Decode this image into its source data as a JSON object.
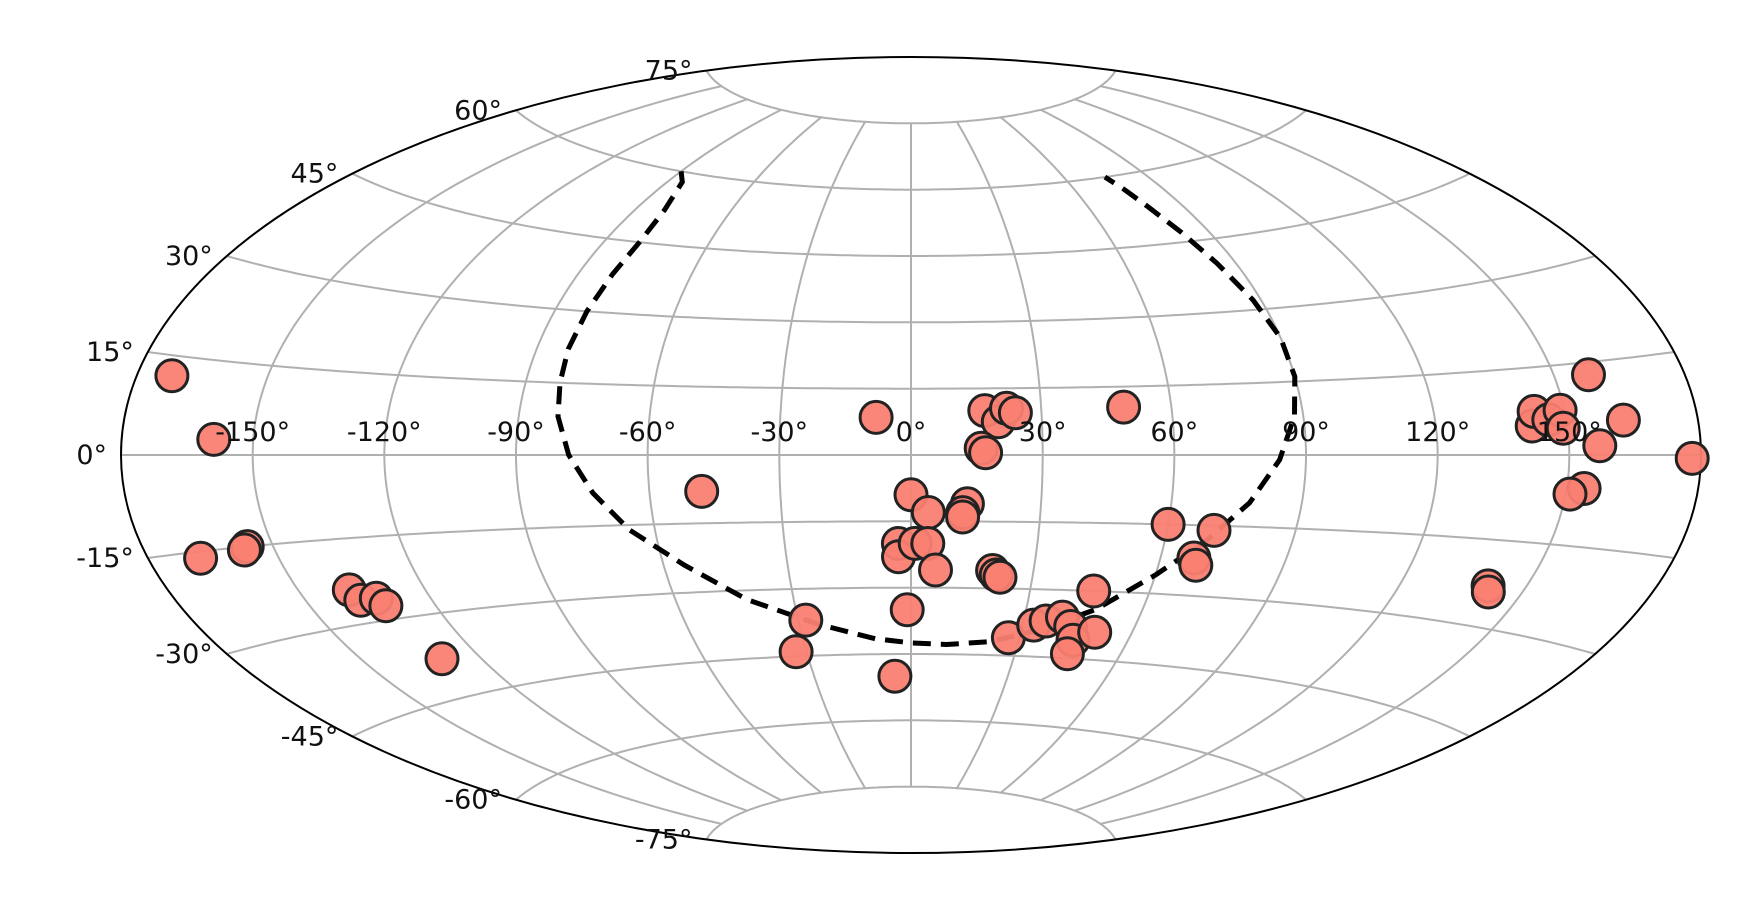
{
  "chart_data": {
    "type": "scatter",
    "projection": "aitoff-like",
    "title": "",
    "xlabel": "",
    "ylabel": "",
    "xlim": [
      -180,
      180
    ],
    "ylim": [
      -90,
      90
    ],
    "grid": true,
    "x_ticks": [
      -150,
      -120,
      -90,
      -60,
      -30,
      0,
      30,
      60,
      90,
      120,
      150
    ],
    "x_tick_labels": [
      "-150°",
      "-120°",
      "-90°",
      "-60°",
      "-30°",
      "0°",
      "30°",
      "60°",
      "90°",
      "120°",
      "150°"
    ],
    "y_ticks": [
      75,
      60,
      45,
      30,
      15,
      0,
      -15,
      -30,
      -45,
      -60,
      -75
    ],
    "y_tick_labels": [
      "75°",
      "60°",
      "45°",
      "30°",
      "15°",
      "0°",
      "-15°",
      "-30°",
      "-45°",
      "-60°",
      "-75°"
    ],
    "colors": {
      "marker_fill": "#fa8072",
      "marker_edge": "#222222",
      "grid": "#b0b0b0",
      "frame": "#000000",
      "boundary": "#000000"
    },
    "points": [
      [
        -172,
        12
      ],
      [
        -159,
        2.5
      ],
      [
        -168,
        -16
      ],
      [
        -156,
        -15
      ],
      [
        -157,
        -15.5
      ],
      [
        -138,
        -24
      ],
      [
        -137,
        -26
      ],
      [
        -133,
        -26
      ],
      [
        -132,
        -27.5
      ],
      [
        -130,
        -38
      ],
      [
        -48,
        -8
      ],
      [
        -8,
        8.5
      ],
      [
        -3,
        -20
      ],
      [
        -3,
        -23
      ],
      [
        1,
        -20
      ],
      [
        0,
        -9
      ],
      [
        4,
        -13
      ],
      [
        4,
        -20
      ],
      [
        -1,
        -35
      ],
      [
        -5,
        -50
      ],
      [
        -33,
        -44
      ],
      [
        -28,
        -37
      ],
      [
        6,
        -26
      ],
      [
        17,
        10
      ],
      [
        20,
        7.5
      ],
      [
        22,
        10.5
      ],
      [
        24,
        9.5
      ],
      [
        16,
        1.5
      ],
      [
        17,
        0.5
      ],
      [
        13,
        -11
      ],
      [
        12,
        -13
      ],
      [
        12,
        -14
      ],
      [
        20,
        -26
      ],
      [
        21,
        -27
      ],
      [
        22,
        -27.5
      ],
      [
        27,
        -41
      ],
      [
        33,
        -38
      ],
      [
        36,
        -37
      ],
      [
        40,
        -36
      ],
      [
        43,
        -38
      ],
      [
        45,
        -41
      ],
      [
        45,
        -44
      ],
      [
        50,
        -39
      ],
      [
        46,
        -30
      ],
      [
        49,
        10.5
      ],
      [
        60,
        -15
      ],
      [
        71,
        -16
      ],
      [
        68,
        -22
      ],
      [
        69,
        -23.5
      ],
      [
        142,
        5
      ],
      [
        143,
        7.5
      ],
      [
        146,
        6
      ],
      [
        149,
        7.5
      ],
      [
        149,
        4.5
      ],
      [
        158,
        13
      ],
      [
        163,
        5.5
      ],
      [
        157,
        1.5
      ],
      [
        178,
        -0.5
      ],
      [
        154,
        -5.5
      ],
      [
        151,
        -6.5
      ],
      [
        141,
        -23
      ],
      [
        142,
        -24
      ]
    ],
    "boundary_curve": [
      [
        -90,
        60
      ],
      [
        -85,
        58
      ],
      [
        -81,
        52
      ],
      [
        -80,
        45
      ],
      [
        -81,
        38
      ],
      [
        -82,
        30
      ],
      [
        -82.5,
        22
      ],
      [
        -82,
        15
      ],
      [
        -81,
        8
      ],
      [
        -78,
        0
      ],
      [
        -73,
        -8
      ],
      [
        -66,
        -16
      ],
      [
        -55,
        -24
      ],
      [
        -42,
        -32
      ],
      [
        -25,
        -38
      ],
      [
        -10,
        -41.5
      ],
      [
        0,
        -42.5
      ],
      [
        10,
        -42.8
      ],
      [
        22,
        -42
      ],
      [
        35,
        -39
      ],
      [
        48,
        -34
      ],
      [
        60,
        -26
      ],
      [
        70,
        -18
      ],
      [
        78,
        -10
      ],
      [
        84,
        -1
      ],
      [
        88,
        8
      ],
      [
        90,
        16
      ],
      [
        90,
        24
      ],
      [
        88,
        32
      ],
      [
        85,
        40
      ],
      [
        82,
        47
      ],
      [
        79,
        53
      ],
      [
        77,
        57
      ],
      [
        75,
        60
      ]
    ],
    "dashed_boundary": true
  }
}
